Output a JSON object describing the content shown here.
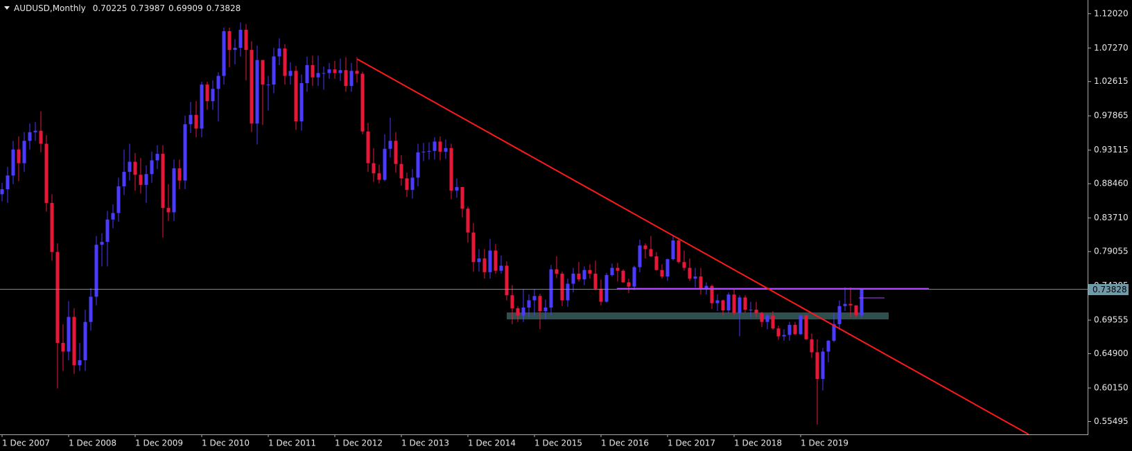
{
  "chart_data": {
    "type": "candlestick",
    "title": "AUDUSD,Monthly",
    "colors": {
      "up": "#4a3cff",
      "down": "#e8173a"
    },
    "ylim": [
      0.5372,
      1.1392
    ],
    "yticks": [
      {
        "value": 1.1202,
        "label": "1.12020"
      },
      {
        "value": 1.0727,
        "label": "1.07270"
      },
      {
        "value": 1.02615,
        "label": "1.02615"
      },
      {
        "value": 0.97865,
        "label": "0.97865"
      },
      {
        "value": 0.93115,
        "label": "0.93115"
      },
      {
        "value": 0.8846,
        "label": "0.88460"
      },
      {
        "value": 0.8371,
        "label": "0.83710"
      },
      {
        "value": 0.79055,
        "label": "0.79055"
      },
      {
        "value": 0.74305,
        "label": "0.74305"
      },
      {
        "value": 0.69555,
        "label": "0.69555"
      },
      {
        "value": 0.649,
        "label": "0.64900"
      },
      {
        "value": 0.6015,
        "label": "0.60150"
      },
      {
        "value": 0.55495,
        "label": "0.55495"
      }
    ],
    "categories": [
      "1 Dec 2007",
      null,
      null,
      null,
      null,
      null,
      null,
      null,
      null,
      null,
      null,
      null,
      "1 Dec 2008",
      null,
      null,
      null,
      null,
      null,
      null,
      null,
      null,
      null,
      null,
      null,
      "1 Dec 2009",
      null,
      null,
      null,
      null,
      null,
      null,
      null,
      null,
      null,
      null,
      null,
      "1 Dec 2010",
      null,
      null,
      null,
      null,
      null,
      null,
      null,
      null,
      null,
      null,
      null,
      "1 Dec 2011",
      null,
      null,
      null,
      null,
      null,
      null,
      null,
      null,
      null,
      null,
      null,
      "1 Dec 2012",
      null,
      null,
      null,
      null,
      null,
      null,
      null,
      null,
      null,
      null,
      null,
      "1 Dec 2013",
      null,
      null,
      null,
      null,
      null,
      null,
      null,
      null,
      null,
      null,
      null,
      "1 Dec 2014",
      null,
      null,
      null,
      null,
      null,
      null,
      null,
      null,
      null,
      null,
      null,
      "1 Dec 2015",
      null,
      null,
      null,
      null,
      null,
      null,
      null,
      null,
      null,
      null,
      null,
      "1 Dec 2016",
      null,
      null,
      null,
      null,
      null,
      null,
      null,
      null,
      null,
      null,
      null,
      "1 Dec 2017",
      null,
      null,
      null,
      null,
      null,
      null,
      null,
      null,
      null,
      null,
      null,
      "1 Dec 2018",
      null,
      null,
      null,
      null,
      null,
      null,
      null,
      null,
      null,
      null,
      null,
      "1 Dec 2019",
      null,
      null,
      null,
      null,
      null,
      null,
      null,
      null,
      null,
      null,
      null
    ],
    "open": [
      0.87,
      0.877,
      0.896,
      0.932,
      0.913,
      0.944,
      0.956,
      0.958,
      0.94,
      0.858,
      0.79,
      0.664,
      0.652,
      0.7,
      0.633,
      0.64,
      0.693,
      0.728,
      0.8,
      0.804,
      0.835,
      0.844,
      0.881,
      0.901,
      0.915,
      0.897,
      0.883,
      0.898,
      0.917,
      0.926,
      0.851,
      0.845,
      0.906,
      0.889,
      0.967,
      0.98,
      0.961,
      1.022,
      0.999,
      1.016,
      1.034,
      1.096,
      1.07,
      1.073,
      1.098,
      1.07,
      0.968,
      1.056,
      1.022,
      1.022,
      1.061,
      1.072,
      1.034,
      1.041,
      0.971,
      1.024,
      1.049,
      1.032,
      1.038,
      1.038,
      1.043,
      1.038,
      1.042,
      1.02,
      1.041,
      1.037,
      0.957,
      0.913,
      0.899,
      0.89,
      0.933,
      0.944,
      0.912,
      0.892,
      0.876,
      0.893,
      0.928,
      0.929,
      0.93,
      0.943,
      0.929,
      0.934,
      0.875,
      0.88,
      0.85,
      0.817,
      0.776,
      0.781,
      0.762,
      0.792,
      0.764,
      0.771,
      0.73,
      0.712,
      0.702,
      0.713,
      0.723,
      0.729,
      0.708,
      0.713,
      0.766,
      0.76,
      0.723,
      0.746,
      0.76,
      0.752,
      0.765,
      0.76,
      0.739,
      0.721,
      0.758,
      0.768,
      0.764,
      0.748,
      0.742,
      0.769,
      0.799,
      0.794,
      0.784,
      0.765,
      0.756,
      0.78,
      0.806,
      0.776,
      0.768,
      0.753,
      0.756,
      0.74,
      0.743,
      0.719,
      0.723,
      0.709,
      0.731,
      0.705,
      0.727,
      0.71,
      0.71,
      0.705,
      0.693,
      0.702,
      0.684,
      0.673,
      0.675,
      0.689,
      0.676,
      0.702,
      0.669,
      0.651,
      0.614,
      0.652,
      0.667,
      0.69,
      0.715,
      0.718,
      0.716,
      0.70225
    ],
    "high": [
      0.886,
      0.908,
      0.944,
      0.95,
      0.956,
      0.968,
      0.97,
      0.985,
      0.952,
      0.87,
      0.802,
      0.69,
      0.722,
      0.712,
      0.664,
      0.71,
      0.74,
      0.812,
      0.816,
      0.847,
      0.856,
      0.893,
      0.932,
      0.94,
      0.927,
      0.92,
      0.91,
      0.929,
      0.938,
      0.938,
      0.884,
      0.918,
      0.918,
      0.979,
      0.998,
      0.999,
      1.026,
      1.026,
      1.028,
      1.039,
      1.101,
      1.101,
      1.085,
      1.1081,
      1.106,
      1.082,
      1.076,
      1.056,
      1.034,
      1.073,
      1.086,
      1.078,
      1.053,
      1.048,
      1.036,
      1.061,
      1.062,
      1.062,
      1.047,
      1.052,
      1.055,
      1.058,
      1.06,
      1.052,
      1.06,
      1.04,
      0.969,
      0.934,
      0.911,
      0.953,
      0.976,
      0.956,
      0.924,
      0.9,
      0.905,
      0.94,
      0.941,
      0.942,
      0.949,
      0.95,
      0.946,
      0.94,
      0.892,
      0.88,
      0.853,
      0.83,
      0.794,
      0.794,
      0.808,
      0.801,
      0.785,
      0.777,
      0.744,
      0.715,
      0.738,
      0.731,
      0.739,
      0.732,
      0.724,
      0.772,
      0.784,
      0.763,
      0.753,
      0.768,
      0.776,
      0.77,
      0.773,
      0.778,
      0.752,
      0.761,
      0.774,
      0.775,
      0.766,
      0.753,
      0.771,
      0.807,
      0.802,
      0.812,
      0.79,
      0.773,
      0.781,
      0.814,
      0.81,
      0.792,
      0.781,
      0.768,
      0.768,
      0.748,
      0.745,
      0.731,
      0.724,
      0.734,
      0.739,
      0.73,
      0.73,
      0.721,
      0.721,
      0.707,
      0.704,
      0.708,
      0.688,
      0.683,
      0.693,
      0.693,
      0.703,
      0.703,
      0.677,
      0.669,
      0.657,
      0.668,
      0.706,
      0.723,
      0.741,
      0.741,
      0.716,
      0.73987
    ],
    "low": [
      0.86,
      0.858,
      0.884,
      0.888,
      0.901,
      0.932,
      0.944,
      0.928,
      0.846,
      0.778,
      0.6009,
      0.625,
      0.64,
      0.621,
      0.625,
      0.625,
      0.681,
      0.716,
      0.77,
      0.77,
      0.823,
      0.832,
      0.869,
      0.889,
      0.875,
      0.871,
      0.858,
      0.886,
      0.905,
      0.81,
      0.833,
      0.833,
      0.877,
      0.877,
      0.955,
      0.949,
      0.949,
      0.987,
      0.987,
      0.971,
      1.022,
      1.046,
      1.05,
      1.061,
      1.028,
      0.956,
      0.939,
      0.966,
      0.986,
      1.01,
      1.049,
      1.022,
      1.022,
      0.959,
      0.958,
      1.012,
      1.02,
      1.02,
      1.015,
      1.03,
      1.03,
      1.027,
      1.012,
      1.012,
      1.025,
      0.953,
      0.901,
      0.887,
      0.885,
      0.888,
      0.921,
      0.9,
      0.882,
      0.866,
      0.864,
      0.881,
      0.916,
      0.918,
      0.918,
      0.917,
      0.919,
      0.863,
      0.865,
      0.838,
      0.803,
      0.763,
      0.763,
      0.753,
      0.753,
      0.76,
      0.76,
      0.723,
      0.69,
      0.693,
      0.693,
      0.7,
      0.702,
      0.683,
      0.697,
      0.702,
      0.754,
      0.715,
      0.714,
      0.734,
      0.749,
      0.744,
      0.753,
      0.737,
      0.716,
      0.72,
      0.756,
      0.749,
      0.747,
      0.733,
      0.737,
      0.762,
      0.781,
      0.783,
      0.764,
      0.753,
      0.75,
      0.778,
      0.774,
      0.764,
      0.75,
      0.741,
      0.731,
      0.731,
      0.711,
      0.708,
      0.702,
      0.705,
      0.702,
      0.673,
      0.706,
      0.7,
      0.7,
      0.686,
      0.683,
      0.682,
      0.668,
      0.667,
      0.667,
      0.675,
      0.675,
      0.668,
      0.643,
      0.5506,
      0.598,
      0.637,
      0.665,
      0.682,
      0.708,
      0.7,
      0.699,
      0.69909
    ],
    "close": [
      0.877,
      0.896,
      0.932,
      0.913,
      0.944,
      0.956,
      0.958,
      0.94,
      0.858,
      0.79,
      0.664,
      0.652,
      0.7,
      0.633,
      0.64,
      0.693,
      0.728,
      0.8,
      0.804,
      0.835,
      0.844,
      0.881,
      0.901,
      0.915,
      0.897,
      0.883,
      0.898,
      0.917,
      0.926,
      0.851,
      0.845,
      0.906,
      0.889,
      0.967,
      0.98,
      0.961,
      1.022,
      0.999,
      1.016,
      1.034,
      1.096,
      1.07,
      1.073,
      1.098,
      1.07,
      0.968,
      1.056,
      1.022,
      1.022,
      1.061,
      1.072,
      1.034,
      1.041,
      0.971,
      1.024,
      1.049,
      1.032,
      1.038,
      1.038,
      1.043,
      1.038,
      1.042,
      1.02,
      1.041,
      1.037,
      0.957,
      0.913,
      0.899,
      0.89,
      0.933,
      0.944,
      0.912,
      0.892,
      0.876,
      0.893,
      0.928,
      0.929,
      0.93,
      0.943,
      0.929,
      0.934,
      0.875,
      0.88,
      0.85,
      0.817,
      0.776,
      0.781,
      0.762,
      0.792,
      0.764,
      0.771,
      0.73,
      0.712,
      0.702,
      0.713,
      0.723,
      0.729,
      0.708,
      0.713,
      0.766,
      0.76,
      0.723,
      0.746,
      0.76,
      0.752,
      0.765,
      0.76,
      0.739,
      0.721,
      0.758,
      0.768,
      0.764,
      0.748,
      0.742,
      0.769,
      0.799,
      0.794,
      0.784,
      0.765,
      0.756,
      0.78,
      0.806,
      0.776,
      0.768,
      0.753,
      0.756,
      0.74,
      0.743,
      0.719,
      0.723,
      0.709,
      0.731,
      0.705,
      0.727,
      0.71,
      0.71,
      0.705,
      0.693,
      0.702,
      0.684,
      0.673,
      0.675,
      0.689,
      0.676,
      0.702,
      0.669,
      0.651,
      0.614,
      0.652,
      0.667,
      0.69,
      0.715,
      0.718,
      0.716,
      0.70225,
      0.73828
    ]
  }
}
